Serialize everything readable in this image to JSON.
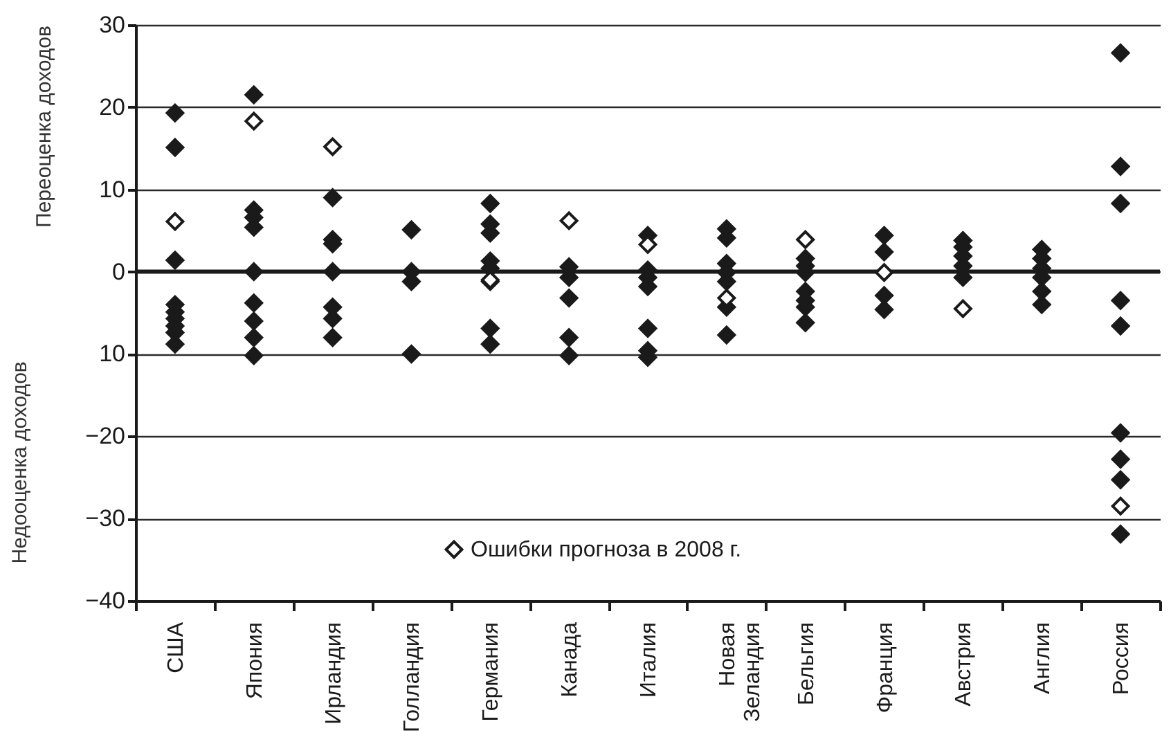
{
  "chart_data": {
    "type": "scatter",
    "categories": [
      "США",
      "Япония",
      "Ирландия",
      "Голландия",
      "Германия",
      "Канада",
      "Италия",
      "Новая Зеландия",
      "Бельгия",
      "Франция",
      "Австрия",
      "Англия",
      "Россия"
    ],
    "series": [
      {
        "color": "#1a1a1a",
        "x": [
          "США",
          "США",
          "США",
          "США",
          "США",
          "США",
          "США",
          "США",
          "США",
          "Япония",
          "Япония",
          "Япония",
          "Япония",
          "Япония",
          "Япония",
          "Япония",
          "Япония",
          "Япония",
          "Ирландия",
          "Ирландия",
          "Ирландия",
          "Ирландия",
          "Ирландия",
          "Ирландия",
          "Ирландия",
          "Голландия",
          "Голландия",
          "Голландия",
          "Голландия",
          "Германия",
          "Германия",
          "Германия",
          "Германия",
          "Германия",
          "Германия",
          "Германия",
          "Германия",
          "Канада",
          "Канада",
          "Канада",
          "Канада",
          "Канада",
          "Италия",
          "Италия",
          "Италия",
          "Италия",
          "Италия",
          "Италия",
          "Италия",
          "Новая Зеландия",
          "Новая Зеландия",
          "Новая Зеландия",
          "Новая Зеландия",
          "Новая Зеландия",
          "Новая Зеландия",
          "Новая Зеландия",
          "Бельгия",
          "Бельгия",
          "Бельгия",
          "Бельгия",
          "Бельгия",
          "Бельгия",
          "Бельгия",
          "Франция",
          "Франция",
          "Франция",
          "Франция",
          "Австрия",
          "Австрия",
          "Австрия",
          "Австрия",
          "Австрия",
          "Англия",
          "Англия",
          "Англия",
          "Англия",
          "Англия",
          "Англия",
          "Россия",
          "Россия",
          "Россия",
          "Россия",
          "Россия",
          "Россия",
          "Россия",
          "Россия",
          "Россия"
        ],
        "values": [
          19.3,
          15.1,
          1.4,
          -4.0,
          -4.9,
          -5.7,
          -6.6,
          -7.4,
          -8.8,
          21.5,
          7.5,
          6.6,
          5.4,
          0,
          -3.8,
          -6.0,
          -8.0,
          -10.2,
          9.0,
          3.9,
          3.4,
          0,
          -4.3,
          -5.7,
          -8.0,
          5.1,
          0,
          -1.2,
          -10.0,
          8.3,
          5.8,
          4.7,
          1.3,
          0.4,
          -1.2,
          -6.9,
          -8.8,
          0.6,
          -0.7,
          -3.2,
          -8.0,
          -10.2,
          4.4,
          0.2,
          -0.7,
          -1.8,
          -6.9,
          -9.6,
          -10.4,
          5.2,
          4.1,
          1.0,
          -0.1,
          -1.2,
          -4.3,
          -7.7,
          1.6,
          0.7,
          -0.1,
          -2.4,
          -3.5,
          -4.3,
          -6.2,
          4.4,
          2.4,
          -2.9,
          -4.6,
          3.8,
          3.0,
          1.9,
          0.7,
          -0.7,
          2.7,
          1.6,
          0.4,
          -0.7,
          -2.4,
          -4.0,
          26.6,
          12.8,
          8.3,
          -3.5,
          -6.6,
          -19.6,
          -22.8,
          -25.3,
          -31.9
        ]
      },
      {
        "name": "Ошибки прогноза в 2008 г.",
        "color": "#ffffff",
        "x": [
          "США",
          "Япония",
          "Ирландия",
          "Германия",
          "Канада",
          "Италия",
          "Новая Зеландия",
          "Бельгия",
          "Франция",
          "Австрия",
          "Россия"
        ],
        "values": [
          6.1,
          18.3,
          15.2,
          -1.0,
          6.2,
          3.3,
          -3.2,
          3.9,
          -0.1,
          -4.5,
          -28.5
        ]
      }
    ],
    "ylabel": "Переоценка доходов",
    "annotations": [
      "Недооценка доходов"
    ],
    "ylim": [
      -40,
      30
    ],
    "yticks": [
      {
        "value": -40,
        "label": "−40"
      },
      {
        "value": -30,
        "label": "−30"
      },
      {
        "value": -20,
        "label": "−20"
      },
      {
        "value": -10,
        "label": "10"
      },
      0,
      10,
      20,
      30
    ],
    "ref_lines": [
      {
        "axis": "y",
        "value": 0,
        "color": "#1a1a1a"
      }
    ],
    "grid": "y",
    "marker": "diamond",
    "legend": "bottom"
  }
}
